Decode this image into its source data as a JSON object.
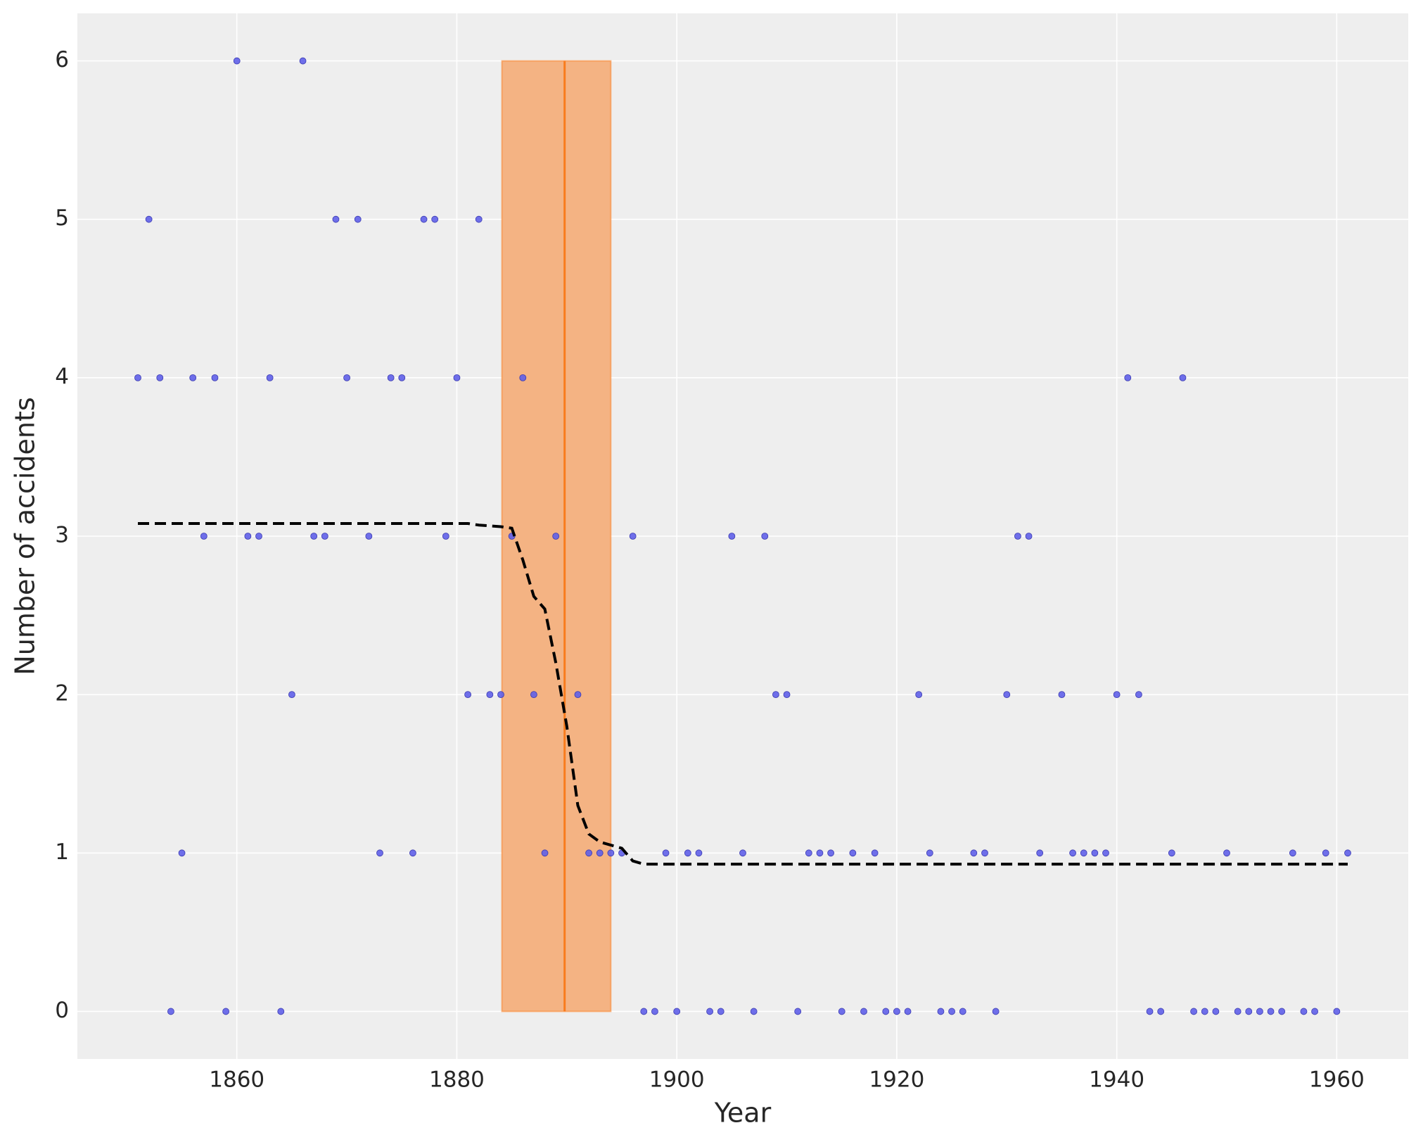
{
  "chart_data": {
    "type": "scatter",
    "xlabel": "Year",
    "ylabel": "Number of accidents",
    "x": [
      1851,
      1852,
      1853,
      1854,
      1855,
      1856,
      1857,
      1858,
      1859,
      1860,
      1861,
      1862,
      1863,
      1864,
      1865,
      1866,
      1867,
      1868,
      1869,
      1870,
      1871,
      1872,
      1873,
      1874,
      1875,
      1876,
      1877,
      1878,
      1879,
      1880,
      1881,
      1882,
      1883,
      1884,
      1885,
      1886,
      1887,
      1888,
      1889,
      1890,
      1891,
      1892,
      1893,
      1894,
      1895,
      1896,
      1897,
      1898,
      1899,
      1900,
      1901,
      1902,
      1903,
      1904,
      1905,
      1906,
      1907,
      1908,
      1909,
      1910,
      1911,
      1912,
      1913,
      1914,
      1915,
      1916,
      1917,
      1918,
      1919,
      1920,
      1921,
      1922,
      1923,
      1924,
      1925,
      1926,
      1927,
      1928,
      1929,
      1930,
      1931,
      1932,
      1933,
      1934,
      1935,
      1936,
      1937,
      1938,
      1939,
      1940,
      1941,
      1942,
      1943,
      1944,
      1945,
      1946,
      1947,
      1948,
      1949,
      1950,
      1951,
      1952,
      1953,
      1954,
      1955,
      1956,
      1957,
      1958,
      1959,
      1960,
      1961
    ],
    "values": [
      4,
      5,
      4,
      0,
      1,
      4,
      3,
      4,
      0,
      6,
      3,
      3,
      4,
      0,
      2,
      6,
      3,
      3,
      5,
      4,
      5,
      3,
      1,
      4,
      4,
      1,
      5,
      5,
      3,
      4,
      2,
      5,
      2,
      2,
      3,
      4,
      2,
      1,
      3,
      null,
      2,
      1,
      1,
      1,
      1,
      3,
      0,
      0,
      1,
      0,
      1,
      1,
      0,
      0,
      3,
      1,
      0,
      3,
      2,
      2,
      0,
      1,
      1,
      1,
      0,
      1,
      0,
      1,
      0,
      0,
      0,
      2,
      1,
      0,
      0,
      0,
      1,
      1,
      0,
      2,
      3,
      3,
      1,
      null,
      2,
      1,
      1,
      1,
      1,
      2,
      4,
      2,
      0,
      0,
      1,
      4,
      0,
      0,
      0,
      1,
      0,
      0,
      0,
      0,
      0,
      1,
      0,
      0,
      1,
      0,
      1
    ],
    "color": "#5f5fe8",
    "line": {
      "x": [
        1851,
        1881,
        1882,
        1884,
        1885,
        1886,
        1887,
        1888,
        1889,
        1890,
        1891,
        1892,
        1893,
        1894,
        1895,
        1896,
        1897,
        1961
      ],
      "values": [
        3.08,
        3.08,
        3.07,
        3.06,
        3.05,
        2.85,
        2.62,
        2.54,
        2.2,
        1.8,
        1.3,
        1.12,
        1.07,
        1.05,
        1.03,
        0.95,
        0.93,
        0.93
      ],
      "color": "#000000",
      "style": "dashed"
    },
    "hdi": [
      1884.1,
      1894
    ],
    "band_y": [
      0,
      6
    ],
    "changepoint": 1889.8,
    "band_color": "#f4b383",
    "changepoint_color": "#f97c1d",
    "xlim": [
      1845.5,
      1966.5
    ],
    "ylim": [
      -0.3,
      6.3
    ],
    "xticks": [
      1860,
      1880,
      1900,
      1920,
      1940,
      1960
    ],
    "yticks": [
      0,
      1,
      2,
      3,
      4,
      5,
      6
    ],
    "grid": true
  }
}
